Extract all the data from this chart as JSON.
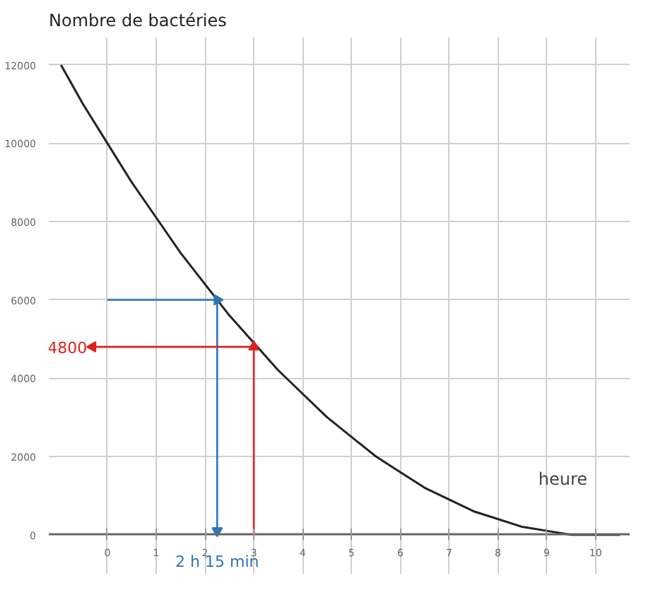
{
  "chart_data": {
    "type": "line",
    "ylabel": "Nombre de bactéries",
    "xlabel": "heure",
    "xlim": [
      -1.2,
      10.7
    ],
    "ylim": [
      -1000,
      12700
    ],
    "xticks": [
      0,
      1,
      2,
      3,
      4,
      5,
      6,
      7,
      8,
      9,
      10
    ],
    "yticks": [
      0,
      2000,
      4000,
      6000,
      8000,
      10000,
      12000
    ],
    "grid": true,
    "marker": "none",
    "line_style": "solid",
    "series": [
      {
        "color": "#222222",
        "x": [
          -0.95,
          -0.5,
          0,
          0.5,
          1,
          1.5,
          2,
          2.5,
          3,
          3.5,
          4,
          4.5,
          5,
          5.5,
          6,
          6.5,
          7,
          7.5,
          8,
          8.5,
          9,
          9.5,
          10,
          10.5
        ],
        "values": [
          12000,
          11000,
          10000,
          9000,
          8100,
          7200,
          6400,
          5600,
          4900,
          4200,
          3600,
          3000,
          2500,
          2000,
          1600,
          1200,
          900,
          600,
          400,
          200,
          100,
          0,
          0,
          0
        ]
      },
      {
        "color": "#2e75b6",
        "marker": "triangle",
        "x": [
          0,
          2.25,
          2.25
        ],
        "values": [
          6000,
          6000,
          100
        ]
      },
      {
        "color": "#e02020",
        "marker": "triangle",
        "x": [
          3,
          3,
          -0.3
        ],
        "values": [
          0,
          4800,
          4800
        ]
      }
    ],
    "annotations": [
      "4800",
      "2 h 15 min"
    ]
  }
}
